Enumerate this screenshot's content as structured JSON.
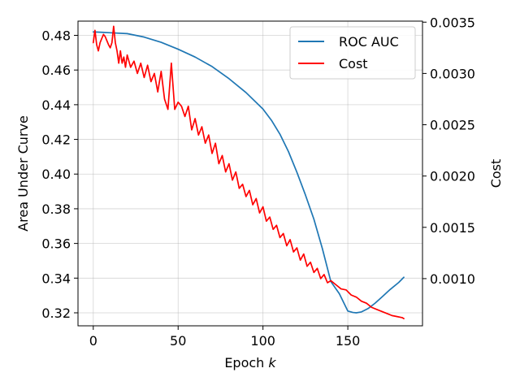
{
  "chart_data": {
    "type": "line",
    "xlabel": "Epoch",
    "xlabel_var": "k",
    "ylabel_left": "Area Under Curve",
    "ylabel_right": "Cost",
    "xlim": [
      -9,
      194
    ],
    "ylim_left": [
      0.3125,
      0.4882
    ],
    "ylim_right": [
      0.00054,
      0.00351
    ],
    "xticks": [
      0,
      50,
      100,
      150
    ],
    "yticks_left": [
      0.32,
      0.34,
      0.36,
      0.38,
      0.4,
      0.42,
      0.44,
      0.46,
      0.48
    ],
    "yticks_left_labels": [
      "0.32",
      "0.34",
      "0.36",
      "0.38",
      "0.40",
      "0.42",
      "0.44",
      "0.46",
      "0.48"
    ],
    "yticks_right": [
      0.001,
      0.0015,
      0.002,
      0.0025,
      0.003,
      0.0035
    ],
    "yticks_right_labels": [
      "0.0010",
      "0.0015",
      "0.0020",
      "0.0025",
      "0.0030",
      "0.0035"
    ],
    "grid": true,
    "legend_position": "top-right",
    "series": [
      {
        "name": "ROC AUC",
        "axis": "left",
        "color": "#1f77b4",
        "x": [
          0,
          10,
          20,
          30,
          40,
          50,
          60,
          70,
          80,
          90,
          100,
          105,
          110,
          115,
          120,
          125,
          130,
          135,
          140,
          145,
          150,
          153,
          155,
          158,
          162,
          166,
          170,
          175,
          180,
          183
        ],
        "y": [
          0.482,
          0.4815,
          0.481,
          0.479,
          0.476,
          0.472,
          0.4675,
          0.462,
          0.455,
          0.447,
          0.4375,
          0.431,
          0.423,
          0.413,
          0.401,
          0.388,
          0.374,
          0.357,
          0.338,
          0.331,
          0.321,
          0.3202,
          0.32,
          0.3205,
          0.3225,
          0.3255,
          0.329,
          0.3335,
          0.3375,
          0.3405
        ]
      },
      {
        "name": "Cost",
        "axis": "right",
        "color": "#ff0000",
        "x": [
          0,
          1,
          2,
          3,
          4,
          5,
          6,
          7,
          8,
          9,
          10,
          11,
          12,
          13,
          14,
          15,
          16,
          17,
          18,
          19,
          20,
          22,
          24,
          26,
          28,
          30,
          32,
          34,
          36,
          38,
          40,
          42,
          44,
          46,
          48,
          50,
          52,
          54,
          56,
          58,
          60,
          62,
          64,
          66,
          68,
          70,
          72,
          74,
          76,
          78,
          80,
          82,
          84,
          86,
          88,
          90,
          92,
          94,
          96,
          98,
          100,
          102,
          104,
          106,
          108,
          110,
          112,
          114,
          116,
          118,
          120,
          122,
          124,
          126,
          128,
          130,
          132,
          134,
          136,
          138,
          140,
          143,
          146,
          149,
          152,
          155,
          158,
          161,
          164,
          167,
          170,
          173,
          176,
          179,
          182,
          183
        ],
        "y": [
          0.0033,
          0.00342,
          0.00328,
          0.00322,
          0.0033,
          0.00334,
          0.00338,
          0.00336,
          0.00332,
          0.00328,
          0.00325,
          0.0033,
          0.00346,
          0.0033,
          0.00322,
          0.0031,
          0.00322,
          0.0031,
          0.00316,
          0.00306,
          0.00318,
          0.00306,
          0.00312,
          0.003,
          0.0031,
          0.00296,
          0.00308,
          0.00292,
          0.003,
          0.00282,
          0.00302,
          0.00275,
          0.00265,
          0.0031,
          0.00265,
          0.00272,
          0.00268,
          0.00258,
          0.00268,
          0.00245,
          0.00256,
          0.0024,
          0.00248,
          0.00232,
          0.0024,
          0.00222,
          0.00232,
          0.00212,
          0.0022,
          0.00204,
          0.00212,
          0.00196,
          0.00204,
          0.00188,
          0.00192,
          0.0018,
          0.00186,
          0.00172,
          0.00178,
          0.00164,
          0.0017,
          0.00156,
          0.0016,
          0.00148,
          0.00152,
          0.0014,
          0.00144,
          0.00132,
          0.00138,
          0.00126,
          0.0013,
          0.00118,
          0.00124,
          0.00112,
          0.00116,
          0.00106,
          0.0011,
          0.001,
          0.00104,
          0.00096,
          0.00098,
          0.00094,
          0.0009,
          0.00089,
          0.00084,
          0.00082,
          0.00078,
          0.00076,
          0.00072,
          0.0007,
          0.00068,
          0.00066,
          0.00064,
          0.00063,
          0.00062,
          0.00061
        ]
      }
    ]
  }
}
